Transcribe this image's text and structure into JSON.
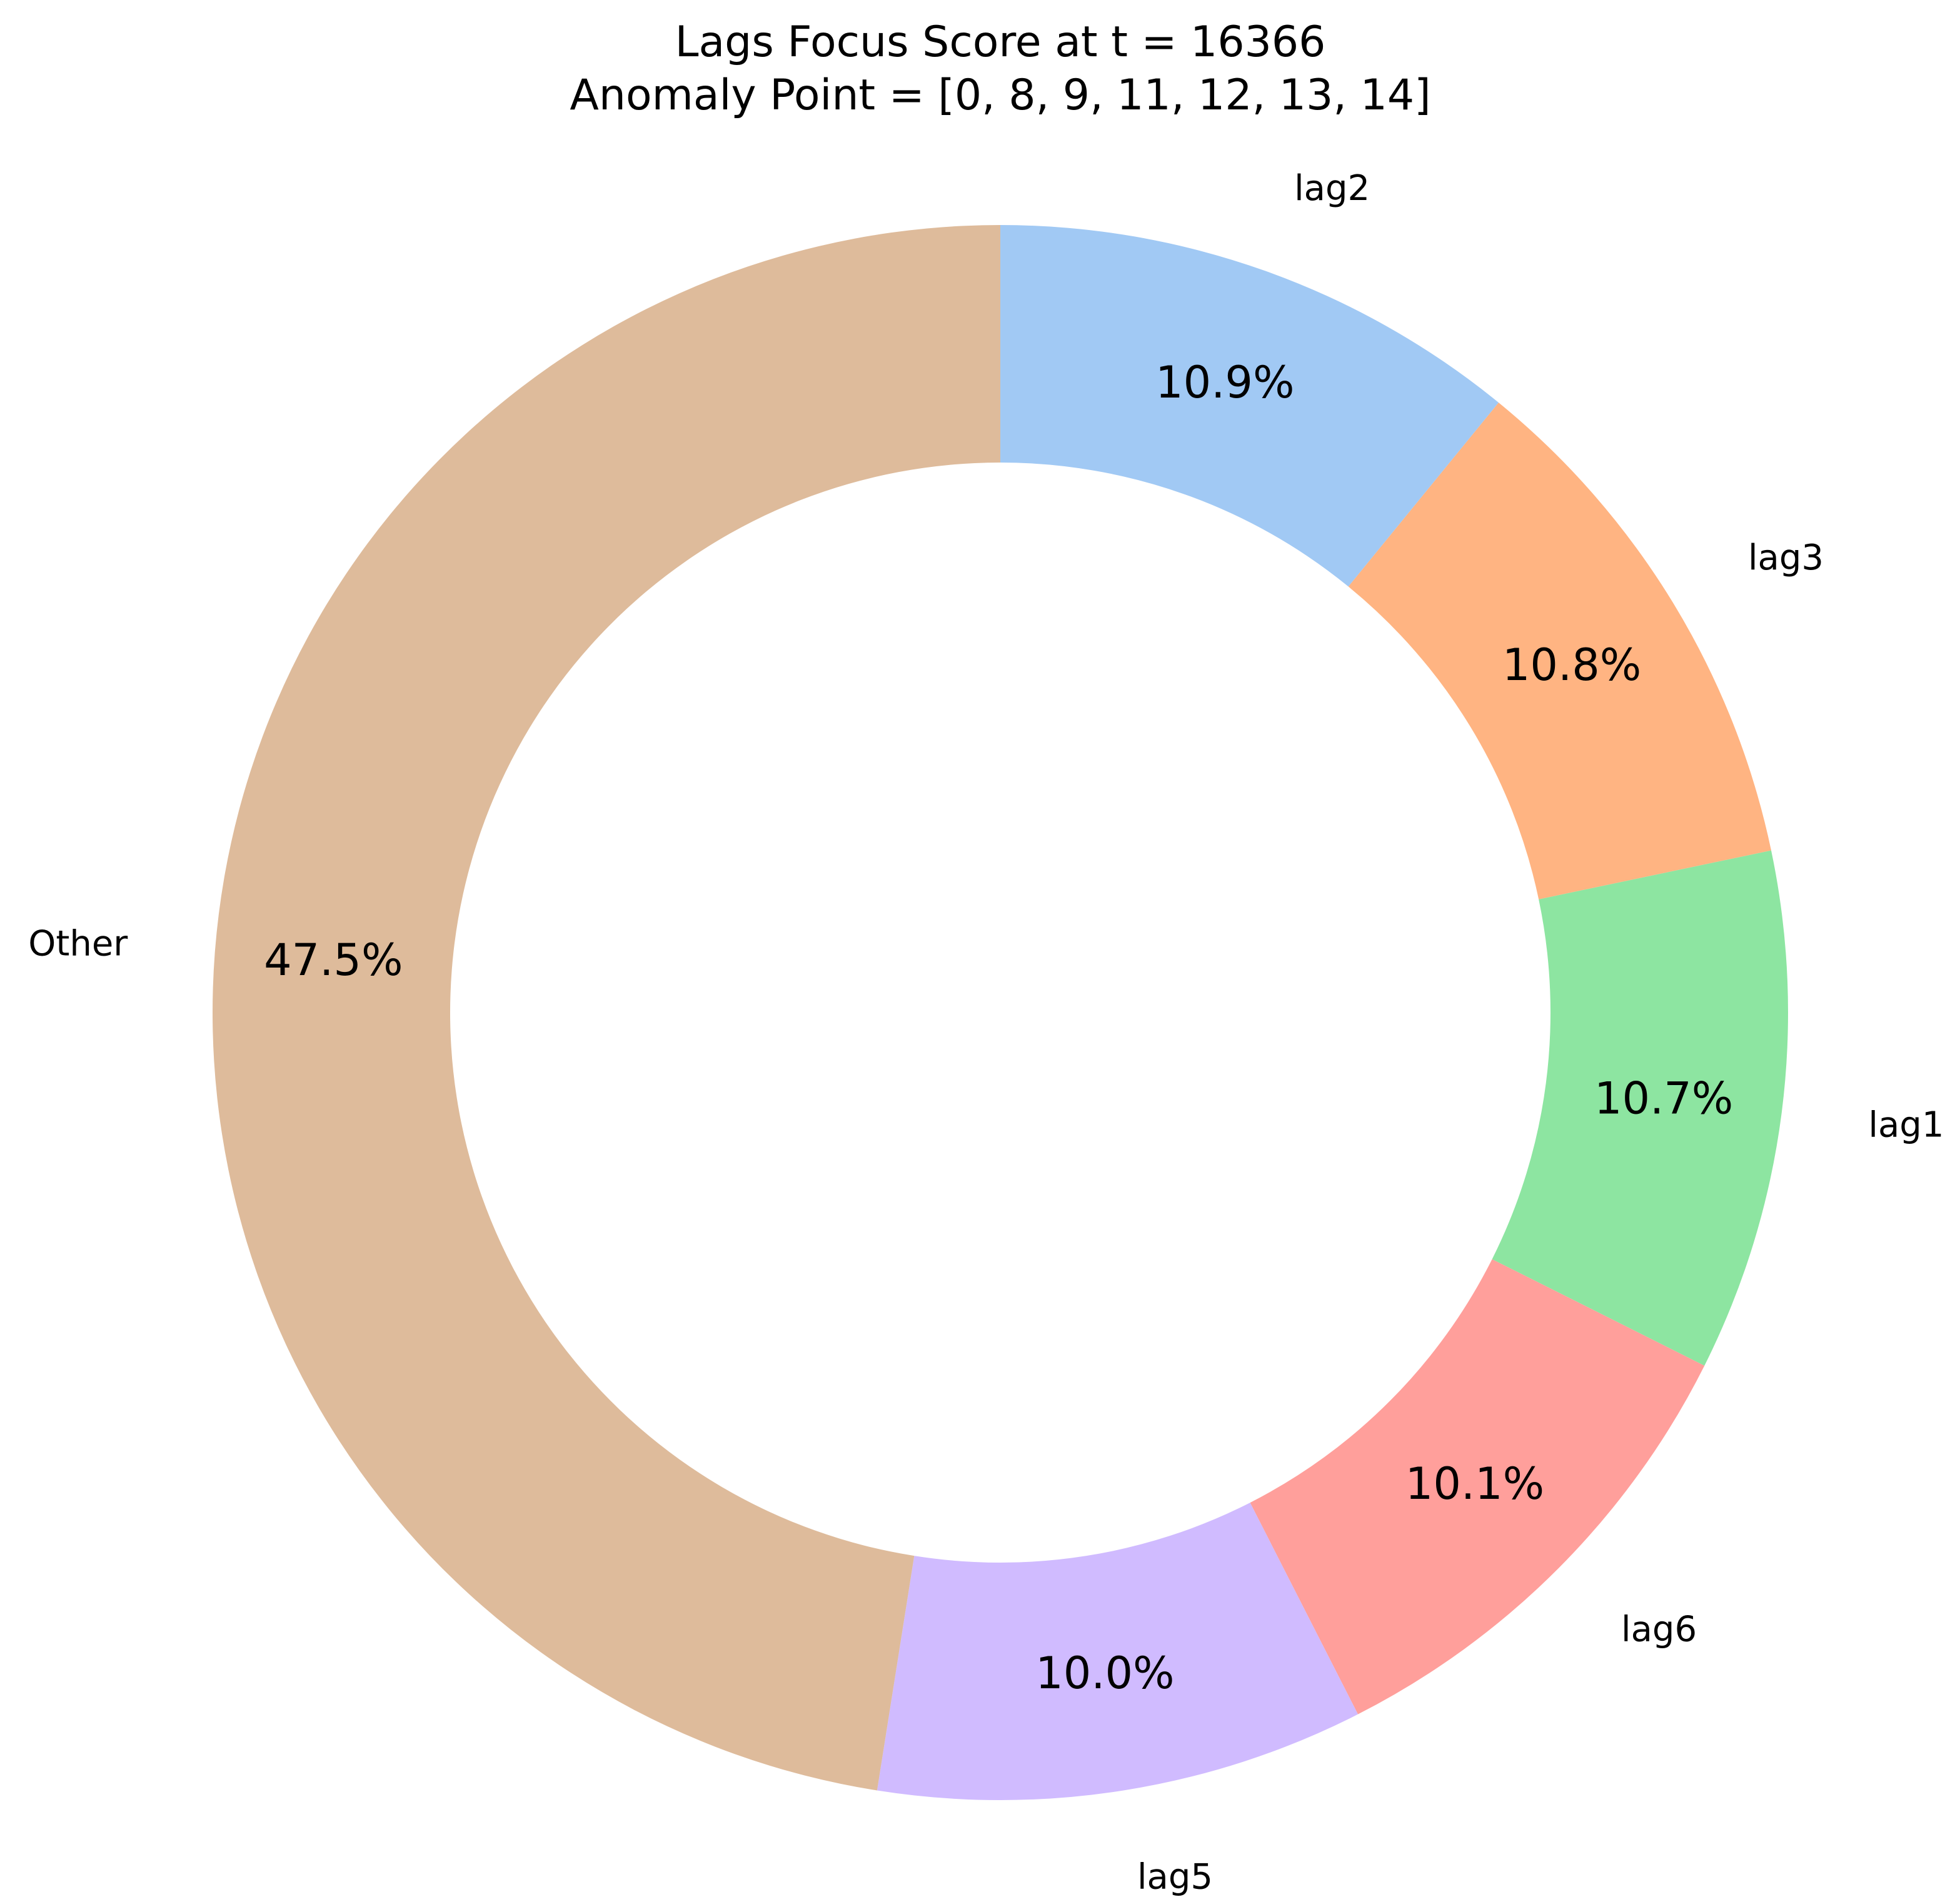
{
  "chart_data": {
    "type": "pie",
    "variant": "donut",
    "title": "Lags Focus Score at t = 16366",
    "subtitle": "Anomaly Point = [0, 8, 9, 11, 12, 13, 14]",
    "start_angle_deg": 90,
    "direction": "clockwise",
    "slices": [
      {
        "label": "lag2",
        "value": 10.9,
        "pct_label": "10.9%",
        "color": "#a1c9f4"
      },
      {
        "label": "lag3",
        "value": 10.8,
        "pct_label": "10.8%",
        "color": "#ffb482"
      },
      {
        "label": "lag1",
        "value": 10.7,
        "pct_label": "10.7%",
        "color": "#8de5a1"
      },
      {
        "label": "lag6",
        "value": 10.1,
        "pct_label": "10.1%",
        "color": "#ff9f9b"
      },
      {
        "label": "lag5",
        "value": 10.0,
        "pct_label": "10.0%",
        "color": "#d0bbff"
      },
      {
        "label": "Other",
        "value": 47.5,
        "pct_label": "47.5%",
        "color": "#debb9b"
      }
    ]
  }
}
